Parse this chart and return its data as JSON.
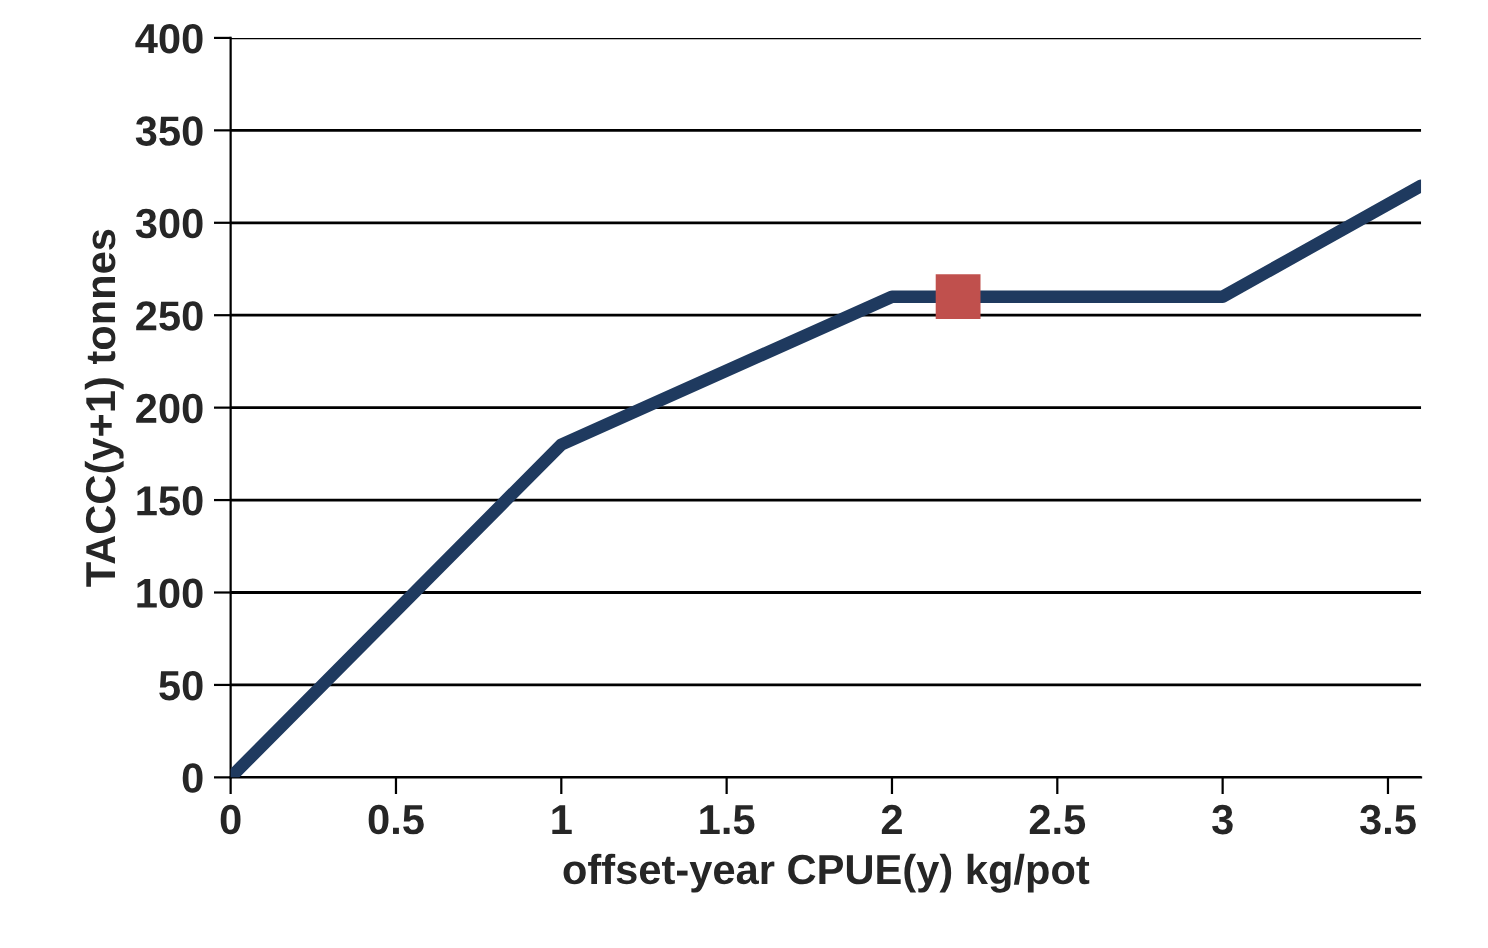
{
  "chart_data": {
    "type": "line",
    "xlabel": "offset-year CPUE(y) kg/pot",
    "ylabel": "TACC(y+1) tonnes",
    "series": [
      {
        "color": "#1f3a5f",
        "marker": "none",
        "line_style": "solid",
        "x": [
          0,
          1,
          2,
          3,
          3.6
        ],
        "values": [
          0,
          180,
          260,
          260,
          320
        ]
      },
      {
        "type": "scatter",
        "color": "#c0504d",
        "marker": "square",
        "x": [
          2.2
        ],
        "values": [
          260
        ]
      }
    ],
    "xlim": [
      0,
      3.6
    ],
    "xticks": [
      0,
      0.5,
      1,
      1.5,
      2,
      2.5,
      3,
      3.5
    ],
    "ylim": [
      0,
      400
    ],
    "yticks": [
      0,
      50,
      100,
      150,
      200,
      250,
      300,
      350,
      400
    ],
    "grid": "y",
    "legend": false
  }
}
